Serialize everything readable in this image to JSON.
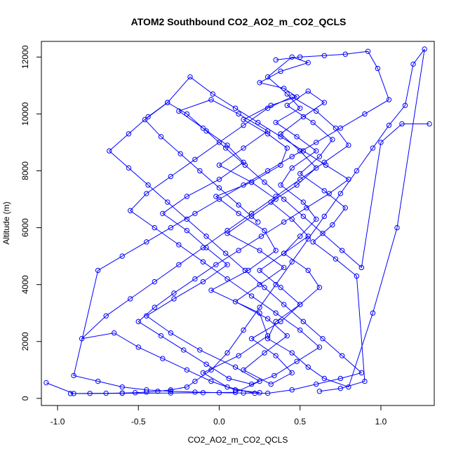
{
  "chart_data": {
    "type": "line",
    "title": "ATOM2 Southbound CO2_AO2_m_CO2_QCLS",
    "xlabel": "CO2_AO2_m_CO2_QCLS",
    "ylabel": "Altitude (m)",
    "xlim": [
      -1.1,
      1.33
    ],
    "ylim": [
      -250,
      12550
    ],
    "xticks": [
      -1.0,
      -0.5,
      0.0,
      0.5,
      1.0
    ],
    "xtick_labels": [
      "-1.0",
      "-0.5",
      "0.0",
      "0.5",
      "1.0"
    ],
    "yticks": [
      0,
      2000,
      4000,
      6000,
      8000,
      10000,
      12000
    ],
    "ytick_labels": [
      "0",
      "2000",
      "4000",
      "6000",
      "8000",
      "10000",
      "12000"
    ],
    "grid": false,
    "marker": "open-circle",
    "color": "#0000ff",
    "series": [
      {
        "x": [
          0.22,
          0.05,
          -0.1,
          0.12,
          0.3,
          0.25,
          -0.05,
          0.18,
          0.35,
          0.28,
          0.12,
          -0.02,
          0.2,
          0.38,
          0.42,
          0.3,
          0.15,
          0.32,
          0.48,
          0.4,
          0.25,
          0.38,
          0.55,
          0.45,
          0.3,
          0.42,
          0.5,
          0.35,
          0.48,
          0.6,
          0.45,
          0.38,
          0.52,
          0.6,
          0.5,
          0.4,
          0.55,
          0.62,
          0.5,
          0.35,
          0.3,
          0.45,
          0.55,
          0.65,
          0.8,
          0.95,
          1.1,
          1.27,
          1.2,
          1.15,
          1.05,
          0.95,
          0.85,
          0.75,
          0.65,
          0.55,
          0.45,
          0.35,
          0.25,
          0.15,
          0.05,
          -0.05,
          -0.15,
          -0.2,
          -0.3,
          -0.38,
          -0.45,
          -0.52,
          -0.6,
          -0.7,
          -0.8,
          -0.9,
          -1.07
        ],
        "y": [
          180,
          400,
          900,
          1500,
          2200,
          3000,
          3800,
          4500,
          5200,
          5900,
          6500,
          7100,
          7600,
          8200,
          8800,
          9300,
          9800,
          10300,
          10600,
          10900,
          11100,
          11500,
          11800,
          12000,
          11300,
          10700,
          10200,
          9700,
          9200,
          8700,
          8100,
          7500,
          6900,
          6300,
          5700,
          5100,
          4500,
          3900,
          3300,
          2700,
          2100,
          1600,
          1100,
          700,
          400,
          3000,
          6000,
          12280,
          11750,
          10300,
          9600,
          8800,
          8000,
          7200,
          6400,
          5600,
          4800,
          4000,
          3200,
          2400,
          1600,
          1000,
          600,
          400,
          300,
          250,
          220,
          200,
          190,
          180,
          175,
          170,
          550
        ]
      },
      {
        "x": [
          -0.92,
          -0.6,
          -0.3,
          -0.1,
          0.1,
          0.25,
          0.1,
          -0.12,
          -0.3,
          -0.45,
          -0.28,
          -0.1,
          0.05,
          -0.08,
          -0.2,
          -0.35,
          -0.2,
          0.0,
          0.15,
          0.05,
          -0.1,
          -0.25,
          -0.05,
          0.12,
          0.3,
          0.15,
          0.0,
          0.2,
          0.35,
          0.2,
          0.05,
          0.25,
          0.4,
          0.25,
          0.1,
          0.3,
          0.42,
          0.28,
          0.15,
          0.32,
          0.45,
          0.35,
          0.2,
          0.38,
          0.5,
          0.38,
          0.25,
          0.4,
          0.55,
          0.45,
          0.32,
          0.48,
          0.6,
          0.5,
          0.38,
          0.52,
          0.65,
          0.55,
          0.42,
          0.58,
          0.7,
          0.62,
          0.5,
          0.65,
          0.78,
          0.7,
          0.58,
          0.72,
          0.85,
          0.9,
          0.75,
          0.62
        ],
        "y": [
          170,
          180,
          190,
          200,
          210,
          600,
          1100,
          1700,
          2300,
          2900,
          3500,
          4100,
          4700,
          5300,
          5900,
          6500,
          7100,
          7700,
          8300,
          8900,
          9500,
          10100,
          10500,
          10000,
          9400,
          8800,
          8200,
          7600,
          7000,
          6400,
          5800,
          5200,
          4600,
          4000,
          3400,
          2800,
          2200,
          1600,
          1000,
          500,
          900,
          1500,
          2100,
          2700,
          3300,
          3900,
          4500,
          5100,
          5700,
          6300,
          6900,
          7500,
          8100,
          8700,
          9300,
          9900,
          10400,
          10800,
          10300,
          9700,
          9100,
          8500,
          7900,
          7300,
          6700,
          6100,
          5500,
          4900,
          4300,
          600,
          350,
          250
        ]
      },
      {
        "x": [
          0.25,
          0.1,
          -0.05,
          -0.2,
          -0.35,
          -0.5,
          -0.65,
          -0.85,
          -0.7,
          -0.55,
          -0.4,
          -0.25,
          -0.1,
          0.05,
          0.2,
          0.35,
          0.5,
          0.65,
          0.8,
          0.72,
          0.6,
          0.45,
          0.3,
          0.15,
          0.0,
          -0.15,
          -0.3,
          -0.45,
          -0.55,
          -0.4,
          -0.25,
          -0.1,
          0.05,
          0.2,
          0.35,
          0.5,
          0.62,
          0.48,
          0.34,
          0.2,
          0.06,
          -0.08,
          -0.22,
          -0.36,
          -0.5,
          -0.4,
          -0.28,
          -0.15,
          -0.02,
          0.12,
          0.26,
          0.4,
          0.54,
          0.68,
          0.8,
          0.66,
          0.52,
          0.38,
          0.24,
          0.1,
          -0.04,
          -0.18,
          -0.32,
          -0.46,
          -0.36,
          -0.24,
          -0.12,
          0.0,
          0.12,
          0.24
        ],
        "y": [
          200,
          300,
          600,
          1000,
          1400,
          1800,
          2300,
          2100,
          2900,
          3500,
          4100,
          4700,
          5300,
          5900,
          6500,
          7100,
          7700,
          8300,
          8900,
          9500,
          10100,
          10600,
          10200,
          9600,
          9000,
          8400,
          7800,
          7200,
          6600,
          6000,
          5400,
          4800,
          4200,
          3600,
          3000,
          2400,
          1800,
          1300,
          800,
          500,
          700,
          1200,
          1700,
          2200,
          2700,
          3200,
          3700,
          4200,
          4700,
          5200,
          5700,
          6200,
          6700,
          7200,
          7700,
          8200,
          8700,
          9200,
          9700,
          10200,
          10700,
          11300,
          10400,
          9800,
          9200,
          8600,
          8000,
          7400,
          6800,
          6200
        ]
      },
      {
        "x": [
          0.35,
          0.5,
          0.65,
          0.78,
          0.92,
          0.98,
          1.05,
          0.9,
          0.75,
          0.6,
          0.45,
          0.3,
          0.15,
          0.0,
          -0.15,
          -0.3,
          -0.45,
          -0.6,
          -0.75,
          -0.9,
          -0.75,
          -0.6,
          -0.45,
          -0.3,
          -0.15,
          0.0,
          0.15,
          0.3,
          0.45,
          0.6,
          0.75,
          0.88,
          0.76,
          0.64,
          0.52,
          0.4,
          0.28,
          0.16,
          0.04,
          -0.08,
          -0.2,
          -0.32,
          -0.44,
          -0.56,
          -0.68,
          -0.56,
          -0.44,
          -0.32,
          -0.2,
          -0.08,
          0.04,
          0.16,
          0.28,
          0.4,
          0.52,
          0.64,
          0.76,
          0.88,
          1.0,
          1.13,
          1.3
        ],
        "y": [
          11900,
          12000,
          12050,
          12100,
          12200,
          11600,
          10500,
          10000,
          9500,
          9000,
          8500,
          8000,
          7500,
          7000,
          6500,
          6000,
          5500,
          5000,
          4500,
          800,
          600,
          400,
          300,
          250,
          220,
          200,
          190,
          180,
          300,
          500,
          700,
          900,
          1500,
          2100,
          2700,
          3300,
          3900,
          4500,
          5100,
          5700,
          6300,
          6900,
          7500,
          8100,
          8700,
          9300,
          9900,
          10400,
          10000,
          9400,
          8800,
          8200,
          7600,
          7000,
          6400,
          5800,
          5200,
          4600,
          9000,
          9650,
          9650
        ]
      }
    ]
  }
}
